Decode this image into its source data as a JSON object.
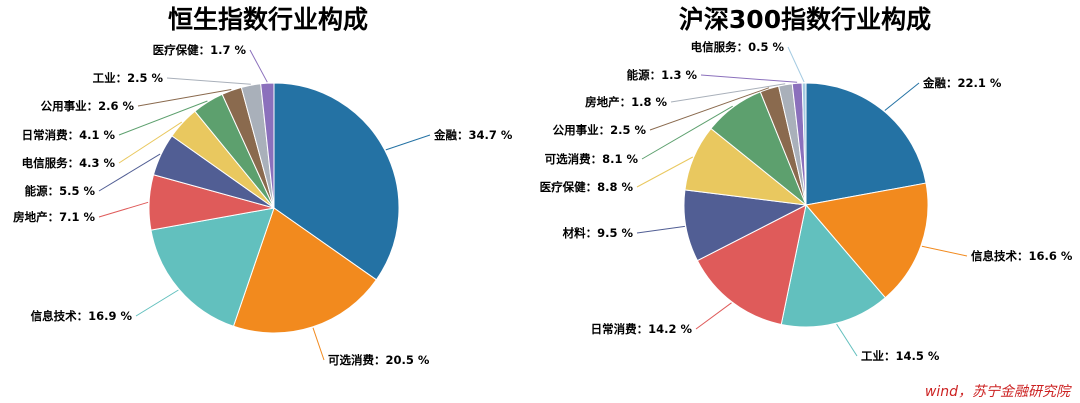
{
  "source": "wind，苏宁金融研究院",
  "colors": [
    "#2472a4",
    "#f28a1e",
    "#62c0be",
    "#df5b5a",
    "#515e94",
    "#e9c85f",
    "#5da06e",
    "#8a6a4e",
    "#a9b0ba",
    "#8b70bc",
    "#a5cbe2"
  ],
  "chart_data": [
    {
      "type": "pie",
      "title": "恒生指数行业构成",
      "slices": [
        {
          "name": "金融",
          "value": 34.7,
          "label": "金融：34.7 %",
          "color": "#2472a4"
        },
        {
          "name": "可选消费",
          "value": 20.5,
          "label": "可选消费：20.5 %",
          "color": "#f28a1e"
        },
        {
          "name": "信息技术",
          "value": 16.9,
          "label": "信息技术：16.9 %",
          "color": "#62c0be"
        },
        {
          "name": "房地产",
          "value": 7.1,
          "label": "房地产：7.1 %",
          "color": "#df5b5a"
        },
        {
          "name": "能源",
          "value": 5.5,
          "label": "能源：5.5 %",
          "color": "#515e94"
        },
        {
          "name": "电信服务",
          "value": 4.3,
          "label": "电信服务：4.3 %",
          "color": "#e9c85f"
        },
        {
          "name": "日常消费",
          "value": 4.1,
          "label": "日常消费：4.1 %",
          "color": "#5da06e"
        },
        {
          "name": "公用事业",
          "value": 2.6,
          "label": "公用事业：2.6 %",
          "color": "#8a6a4e"
        },
        {
          "name": "工业",
          "value": 2.5,
          "label": "工业：2.5 %",
          "color": "#a9b0ba"
        },
        {
          "name": "医疗保健",
          "value": 1.7,
          "label": "医疗保健：1.7 %",
          "color": "#8b70bc"
        }
      ]
    },
    {
      "type": "pie",
      "title": "沪深300指数行业构成",
      "slices": [
        {
          "name": "金融",
          "value": 22.1,
          "label": "金融：22.1 %",
          "color": "#2472a4"
        },
        {
          "name": "信息技术",
          "value": 16.6,
          "label": "信息技术：16.6 %",
          "color": "#f28a1e"
        },
        {
          "name": "工业",
          "value": 14.5,
          "label": "工业：14.5 %",
          "color": "#62c0be"
        },
        {
          "name": "日常消费",
          "value": 14.2,
          "label": "日常消费：14.2 %",
          "color": "#df5b5a"
        },
        {
          "name": "材料",
          "value": 9.5,
          "label": "材料：9.5 %",
          "color": "#515e94"
        },
        {
          "name": "医疗保健",
          "value": 8.8,
          "label": "医疗保健：8.8 %",
          "color": "#e9c85f"
        },
        {
          "name": "可选消费",
          "value": 8.1,
          "label": "可选消费：8.1 %",
          "color": "#5da06e"
        },
        {
          "name": "公用事业",
          "value": 2.5,
          "label": "公用事业：2.5 %",
          "color": "#8a6a4e"
        },
        {
          "name": "房地产",
          "value": 1.8,
          "label": "房地产：1.8 %",
          "color": "#a9b0ba"
        },
        {
          "name": "能源",
          "value": 1.3,
          "label": "能源：1.3 %",
          "color": "#8b70bc"
        },
        {
          "name": "电信服务",
          "value": 0.5,
          "label": "电信服务：0.5 %",
          "color": "#a5cbe2"
        }
      ]
    }
  ]
}
